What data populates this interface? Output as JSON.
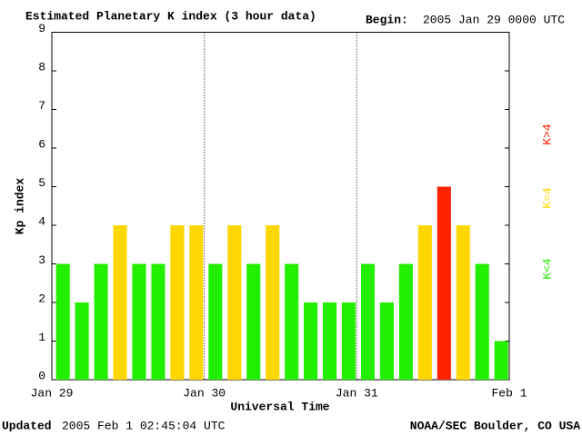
{
  "chart_data": {
    "type": "bar",
    "title": "Estimated Planetary K index (3 hour data)",
    "begin_label": "Begin:",
    "begin": "2005 Jan 29 0000 UTC",
    "ylabel": "Kp index",
    "xlabel": "Universal Time",
    "updated_label": "Updated",
    "updated": "2005 Feb  1 02:45:04 UTC",
    "source": "NOAA/SEC Boulder, CO USA",
    "x": [
      0,
      3,
      6,
      9,
      12,
      15,
      18,
      21,
      24,
      27,
      30,
      33,
      36,
      39,
      42,
      45,
      48,
      51,
      54,
      57,
      60,
      63,
      66,
      69
    ],
    "values": [
      3,
      2,
      3,
      4,
      3,
      3,
      4,
      4,
      3,
      4,
      3,
      4,
      3,
      2,
      2,
      2,
      3,
      2,
      3,
      4,
      5,
      4,
      3,
      1
    ],
    "colors": [
      "#22ee00",
      "#22ee00",
      "#22ee00",
      "#ffd700",
      "#22ee00",
      "#22ee00",
      "#ffd700",
      "#ffd700",
      "#22ee00",
      "#ffd700",
      "#22ee00",
      "#ffd700",
      "#22ee00",
      "#22ee00",
      "#22ee00",
      "#22ee00",
      "#22ee00",
      "#22ee00",
      "#22ee00",
      "#ffd700",
      "#ff2200",
      "#ffd700",
      "#22ee00",
      "#22ee00"
    ],
    "xlim": [
      0,
      72
    ],
    "xticks": [
      {
        "value": 0,
        "label": "Jan 29"
      },
      {
        "value": 24,
        "label": "Jan 30"
      },
      {
        "value": 48,
        "label": "Jan 31"
      },
      {
        "value": 72,
        "label": "Feb 1"
      }
    ],
    "ylim": [
      0,
      9
    ],
    "yticks": [
      0,
      1,
      2,
      3,
      4,
      5,
      6,
      7,
      8,
      9
    ],
    "legend": [
      {
        "label": "K<4",
        "color": "#22ee00"
      },
      {
        "label": "K=4",
        "color": "#ffd700"
      },
      {
        "label": "K>4",
        "color": "#ff2200"
      }
    ]
  }
}
